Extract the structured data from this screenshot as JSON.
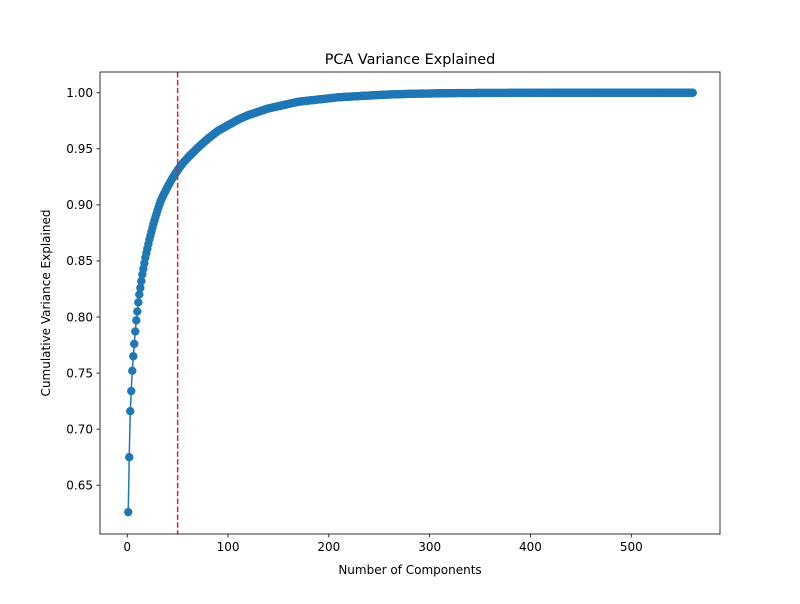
{
  "chart_data": {
    "type": "line",
    "title": "PCA Variance Explained",
    "xlabel": "Number of Components",
    "ylabel": "Cumulative Variance Explained",
    "xlim": [
      -27,
      588
    ],
    "ylim": [
      0.6065,
      1.0185
    ],
    "x_ticks": [
      0,
      100,
      200,
      300,
      400,
      500
    ],
    "x_tick_labels": [
      "0",
      "100",
      "200",
      "300",
      "400",
      "500"
    ],
    "y_ticks": [
      0.65,
      0.7,
      0.75,
      0.8,
      0.85,
      0.9,
      0.95,
      1.0
    ],
    "y_tick_labels": [
      "0.65",
      "0.70",
      "0.75",
      "0.80",
      "0.85",
      "0.90",
      "0.95",
      "1.00"
    ],
    "grid": false,
    "series": [
      {
        "color": "#1f77b4",
        "marker": "circle",
        "x": [
          1,
          2,
          3,
          4,
          5,
          6,
          7,
          8,
          9,
          10,
          11,
          12,
          13,
          14,
          15,
          16,
          17,
          18,
          19,
          20,
          22,
          24,
          26,
          28,
          30,
          33,
          36,
          40,
          45,
          50,
          55,
          60,
          70,
          80,
          90,
          100,
          110,
          120,
          130,
          140,
          150,
          160,
          170,
          180,
          190,
          200,
          210,
          220,
          230,
          240,
          250,
          260,
          270,
          280,
          290,
          300,
          310,
          320,
          330,
          340,
          350,
          360,
          370,
          380,
          390,
          400,
          410,
          420,
          430,
          440,
          450,
          460,
          470,
          480,
          490,
          500,
          510,
          520,
          530,
          540,
          550,
          561
        ],
        "values": [
          0.626,
          0.675,
          0.716,
          0.734,
          0.752,
          0.765,
          0.776,
          0.787,
          0.797,
          0.805,
          0.813,
          0.82,
          0.826,
          0.832,
          0.838,
          0.843,
          0.848,
          0.853,
          0.857,
          0.861,
          0.869,
          0.876,
          0.883,
          0.889,
          0.895,
          0.903,
          0.909,
          0.916,
          0.924,
          0.931,
          0.937,
          0.942,
          0.951,
          0.959,
          0.966,
          0.971,
          0.976,
          0.98,
          0.983,
          0.986,
          0.988,
          0.99,
          0.992,
          0.993,
          0.994,
          0.995,
          0.996,
          0.9965,
          0.997,
          0.9975,
          0.998,
          0.9984,
          0.9987,
          0.999,
          0.9992,
          0.9993,
          0.9995,
          0.9996,
          0.9997,
          0.9997,
          0.9998,
          0.9998,
          0.9998,
          0.9999,
          0.9999,
          0.9999,
          0.9999,
          0.9999,
          1.0,
          1.0,
          1.0,
          1.0,
          1.0,
          1.0,
          1.0,
          1.0,
          1.0,
          1.0,
          1.0,
          1.0,
          1.0,
          1.0
        ]
      }
    ],
    "annotations": [
      {
        "type": "vline",
        "x": 50,
        "color": "#d62728",
        "style": "dashed"
      }
    ]
  }
}
